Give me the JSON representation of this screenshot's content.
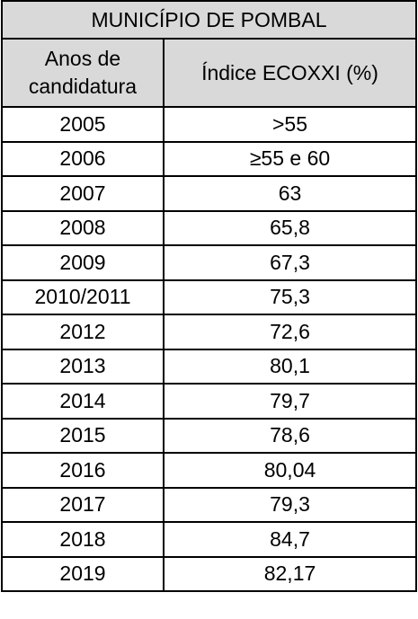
{
  "table": {
    "title": "MUNICÍPIO DE POMBAL",
    "columns": [
      "Anos de candidatura",
      "Índice ECOXXI (%)"
    ],
    "rows": [
      [
        "2005",
        ">55"
      ],
      [
        "2006",
        "≥55 e 60"
      ],
      [
        "2007",
        "63"
      ],
      [
        "2008",
        "65,8"
      ],
      [
        "2009",
        "67,3"
      ],
      [
        "2010/2011",
        "75,3"
      ],
      [
        "2012",
        "72,6"
      ],
      [
        "2013",
        "80,1"
      ],
      [
        "2014",
        "79,7"
      ],
      [
        "2015",
        "78,6"
      ],
      [
        "2016",
        "80,04"
      ],
      [
        "2017",
        "79,3"
      ],
      [
        "2018",
        "84,7"
      ],
      [
        "2019",
        "82,17"
      ]
    ]
  }
}
